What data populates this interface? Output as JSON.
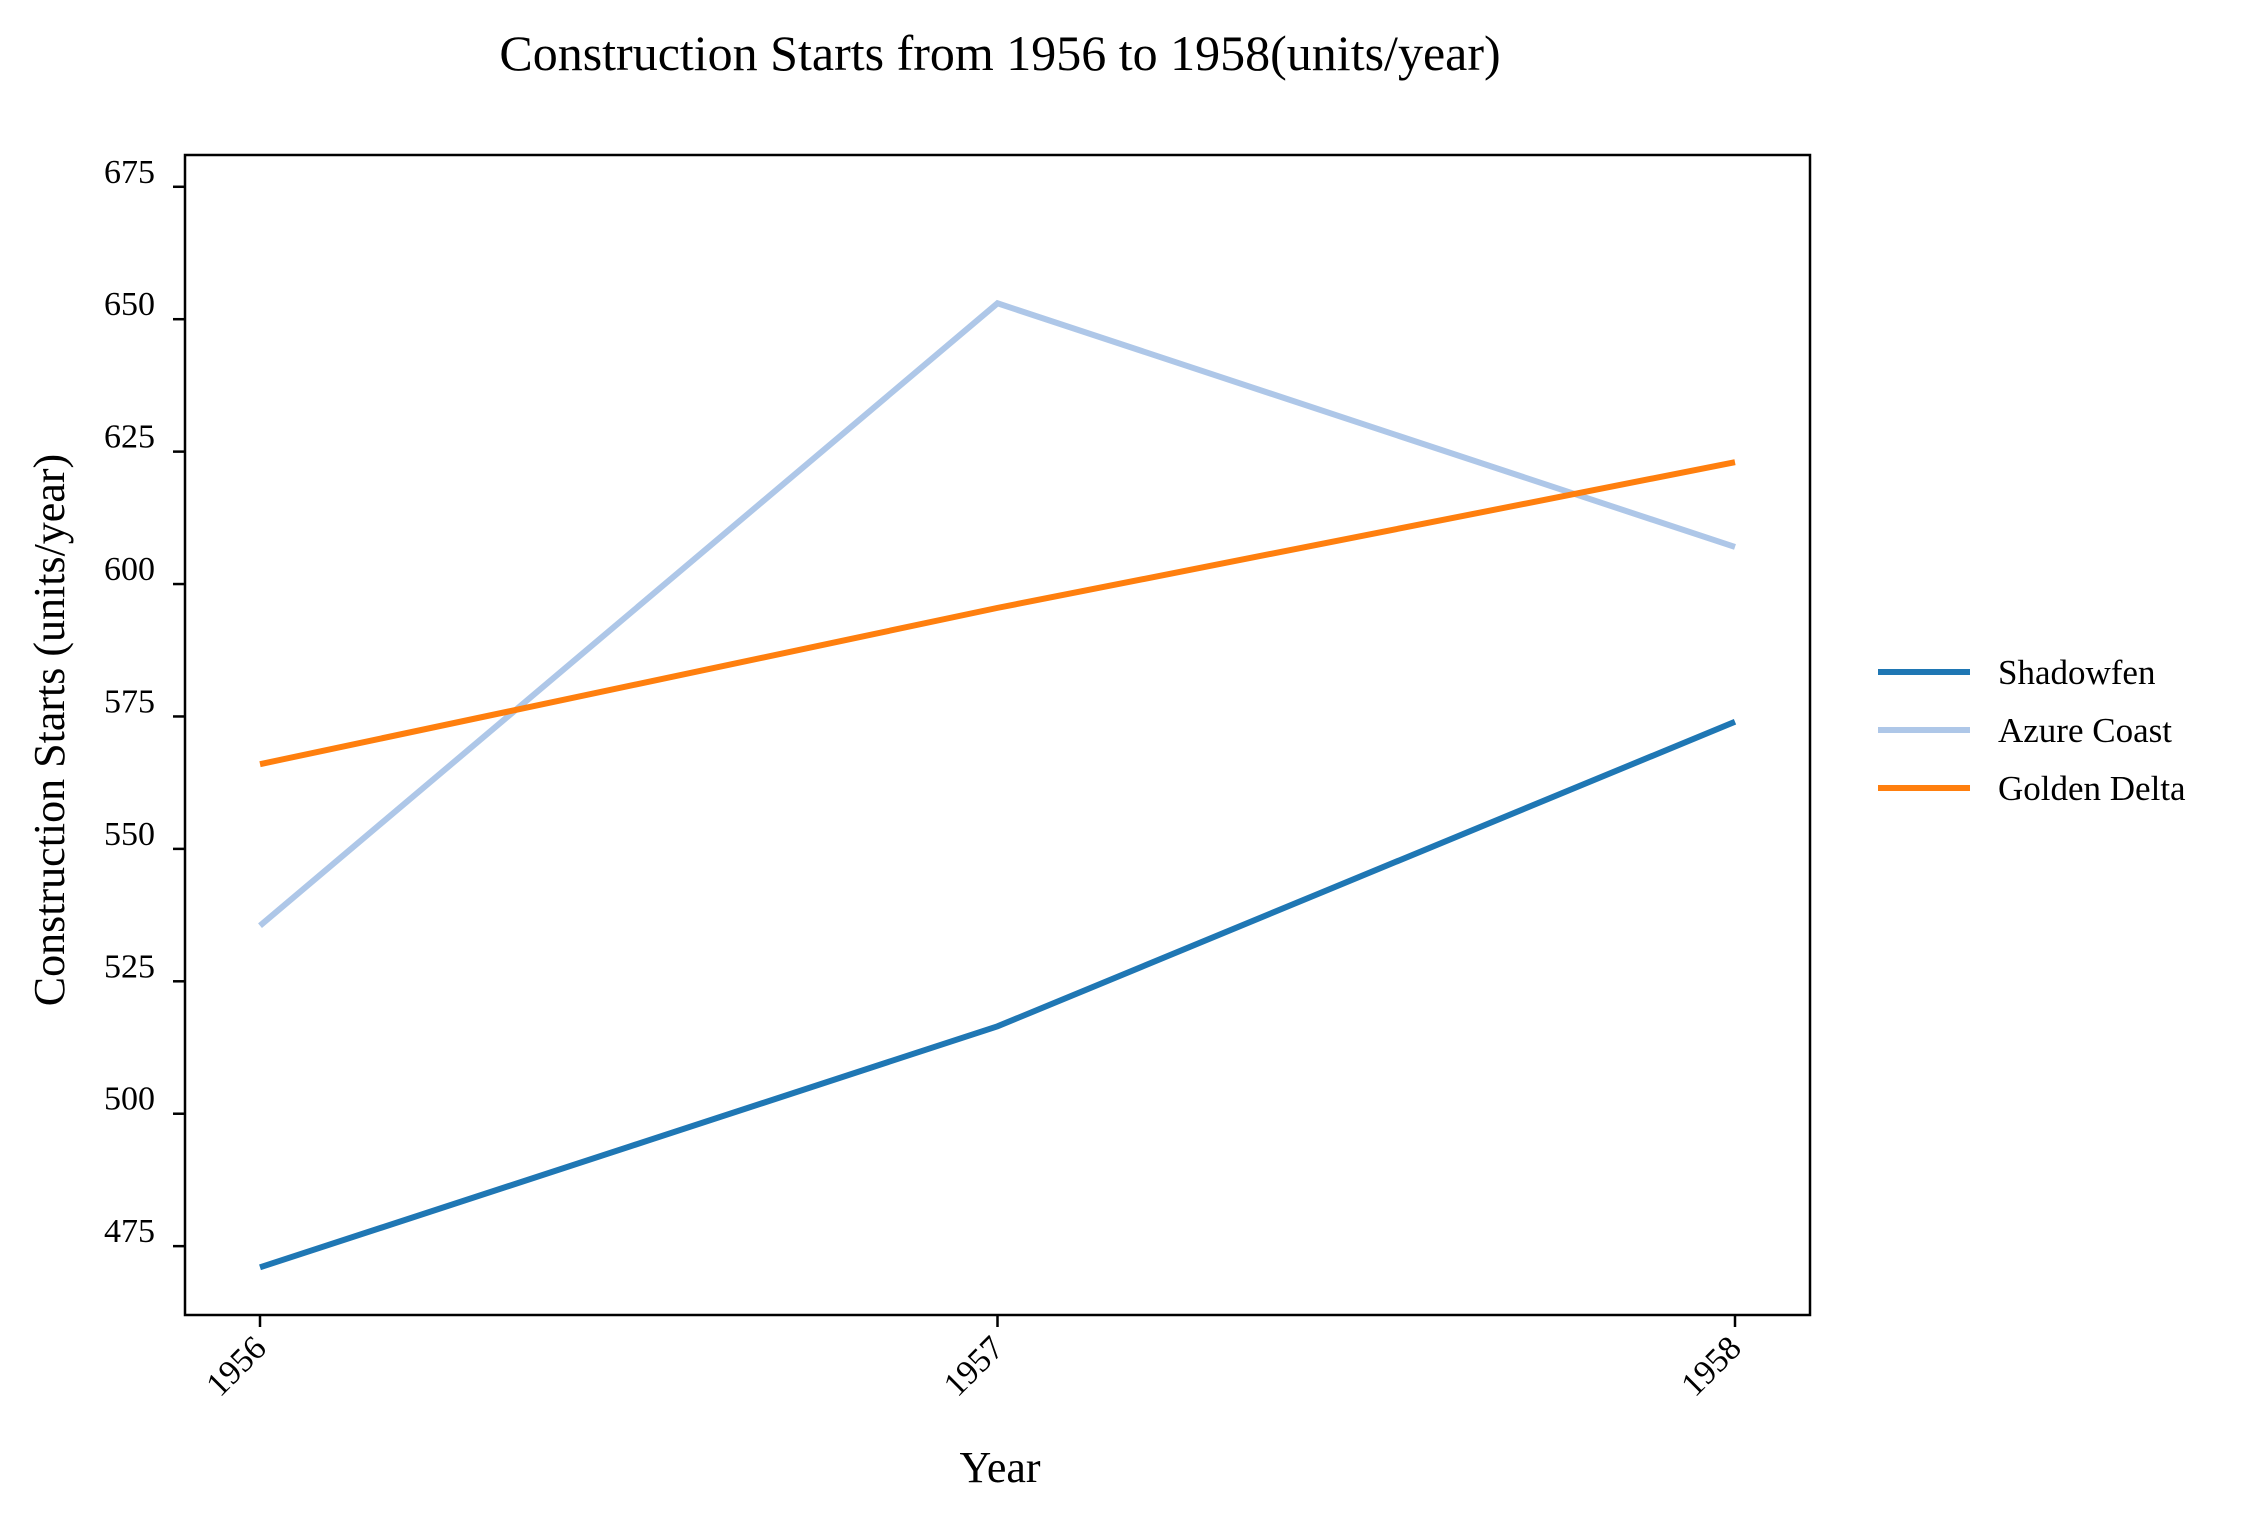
{
  "chart_data": {
    "type": "line",
    "title": "Construction Starts from 1956 to 1958(units/year)",
    "xlabel": "Year",
    "ylabel": "Construction Starts (units/year)",
    "x": [
      "1956",
      "1957",
      "1958"
    ],
    "y_ticks": [
      475,
      500,
      525,
      550,
      575,
      600,
      625,
      650,
      675
    ],
    "ylim": [
      462,
      681
    ],
    "grid": false,
    "legend_position": "right",
    "series": [
      {
        "name": "Shadowfen",
        "color": "#1f77b4",
        "values": [
          471,
          516.5,
          574
        ]
      },
      {
        "name": "Azure Coast",
        "color": "#aec7e8",
        "values": [
          535.5,
          653,
          607
        ]
      },
      {
        "name": "Golden Delta",
        "color": "#ff7f0e",
        "values": [
          566,
          595.5,
          623
        ]
      }
    ]
  }
}
